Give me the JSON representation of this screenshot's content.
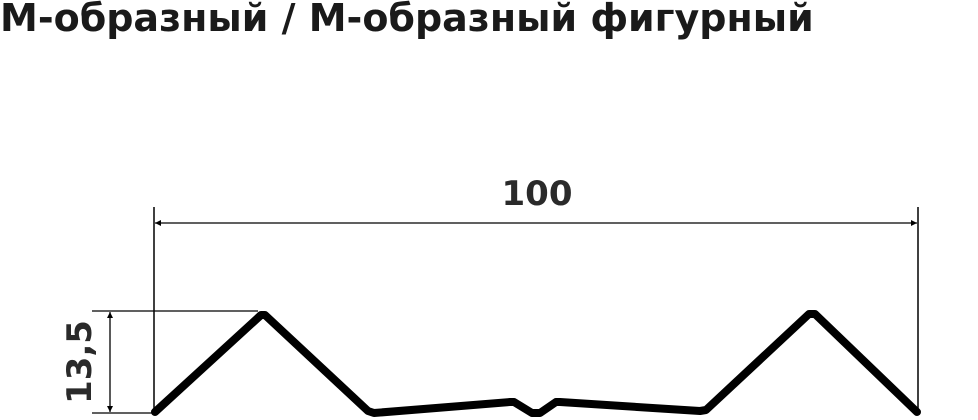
{
  "title": "М-образный / М-образный фигурный",
  "dimensions": {
    "width_label": "100",
    "height_label": "13,5"
  },
  "colors": {
    "profile": "#000000",
    "text": "#2a2a2a"
  }
}
